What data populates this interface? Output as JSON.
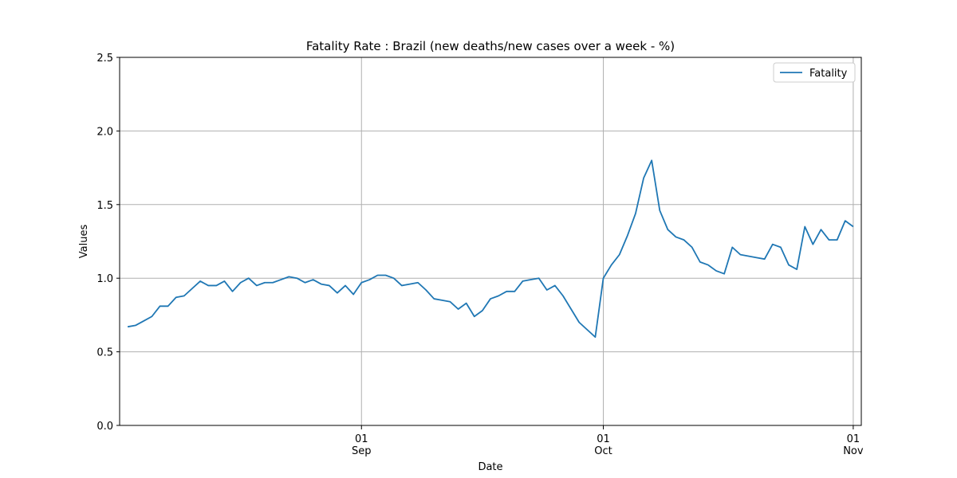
{
  "chart_data": {
    "type": "line",
    "title": "Fatality Rate : Brazil  (new deaths/new cases over a week - %)",
    "x_label": "Date",
    "y_label": "Values",
    "x": [
      "08-03",
      "08-04",
      "08-05",
      "08-06",
      "08-07",
      "08-08",
      "08-09",
      "08-10",
      "08-11",
      "08-12",
      "08-13",
      "08-14",
      "08-15",
      "08-16",
      "08-17",
      "08-18",
      "08-19",
      "08-20",
      "08-21",
      "08-22",
      "08-23",
      "08-24",
      "08-25",
      "08-26",
      "08-27",
      "08-28",
      "08-29",
      "08-30",
      "08-31",
      "09-01",
      "09-02",
      "09-03",
      "09-04",
      "09-05",
      "09-06",
      "09-07",
      "09-08",
      "09-09",
      "09-10",
      "09-11",
      "09-12",
      "09-13",
      "09-14",
      "09-15",
      "09-16",
      "09-17",
      "09-18",
      "09-19",
      "09-20",
      "09-21",
      "09-22",
      "09-23",
      "09-24",
      "09-25",
      "09-26",
      "09-27",
      "09-28",
      "09-29",
      "09-30",
      "10-01",
      "10-02",
      "10-03",
      "10-04",
      "10-05",
      "10-06",
      "10-07",
      "10-08",
      "10-09",
      "10-10",
      "10-11",
      "10-12",
      "10-13",
      "10-14",
      "10-15",
      "10-16",
      "10-17",
      "10-18",
      "10-19",
      "10-20",
      "10-21",
      "10-22",
      "10-23",
      "10-24",
      "10-25",
      "10-26",
      "10-27",
      "10-28",
      "10-29",
      "10-30",
      "10-31",
      "11-01"
    ],
    "series": [
      {
        "name": "Fatality",
        "color": "#1f77b4",
        "values": [
          0.67,
          0.68,
          0.71,
          0.74,
          0.81,
          0.81,
          0.87,
          0.88,
          0.93,
          0.98,
          0.95,
          0.95,
          0.98,
          0.91,
          0.97,
          1.0,
          0.95,
          0.97,
          0.97,
          0.99,
          1.01,
          1.0,
          0.97,
          0.99,
          0.96,
          0.95,
          0.9,
          0.95,
          0.89,
          0.97,
          0.99,
          1.02,
          1.02,
          1.0,
          0.95,
          0.96,
          0.97,
          0.92,
          0.86,
          0.85,
          0.84,
          0.79,
          0.83,
          0.74,
          0.78,
          0.86,
          0.88,
          0.91,
          0.91,
          0.98,
          0.99,
          1.0,
          0.92,
          0.95,
          0.88,
          0.79,
          0.7,
          0.65,
          0.6,
          1.0,
          1.09,
          1.16,
          1.29,
          1.44,
          1.68,
          1.8,
          1.46,
          1.33,
          1.28,
          1.26,
          1.21,
          1.11,
          1.09,
          1.05,
          1.03,
          1.21,
          1.16,
          1.15,
          1.14,
          1.13,
          1.23,
          1.21,
          1.09,
          1.06,
          1.35,
          1.23,
          1.33,
          1.26,
          1.26,
          1.39,
          1.35
        ]
      }
    ],
    "xlim": [
      "08-02",
      "11-02"
    ],
    "xticks": [
      {
        "value": "09-01",
        "label": [
          "01",
          "Sep"
        ]
      },
      {
        "value": "10-01",
        "label": [
          "01",
          "Oct"
        ]
      },
      {
        "value": "11-01",
        "label": [
          "01",
          "Nov"
        ]
      }
    ],
    "ylim": [
      0,
      2.5
    ],
    "yticks": [
      {
        "value": 0,
        "label": "0.0"
      },
      {
        "value": 0.5,
        "label": "0.5"
      },
      {
        "value": 1,
        "label": "1.0"
      },
      {
        "value": 1.5,
        "label": "1.5"
      },
      {
        "value": 2,
        "label": "2.0"
      },
      {
        "value": 2.5,
        "label": "2.5"
      }
    ],
    "grid": true,
    "legend": "upper right"
  }
}
